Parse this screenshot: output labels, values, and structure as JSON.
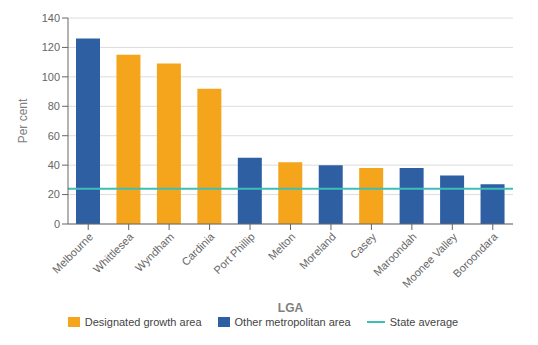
{
  "chart_data": {
    "type": "bar",
    "categories": [
      "Melbourne",
      "Whittlesea",
      "Wyndham",
      "Cardinia",
      "Port Phillip",
      "Melton",
      "Moreland",
      "Casey",
      "Maroondah",
      "Moonee Valley",
      "Boroondara"
    ],
    "values": [
      126,
      115,
      109,
      92,
      45,
      42,
      40,
      38,
      38,
      33,
      27
    ],
    "colors": [
      "#2e5fa3",
      "#f5a51b",
      "#f5a51b",
      "#f5a51b",
      "#2e5fa3",
      "#f5a51b",
      "#2e5fa3",
      "#f5a51b",
      "#2e5fa3",
      "#2e5fa3",
      "#2e5fa3"
    ],
    "groups": [
      {
        "name": "Designated growth area",
        "color": "#f5a51b"
      },
      {
        "name": "Other metropolitan area",
        "color": "#2e5fa3"
      }
    ],
    "reference_line": {
      "name": "State average",
      "value": 24,
      "color": "#3dbfb8"
    },
    "xlabel": "LGA",
    "ylabel": "Per cent",
    "ylim": [
      0,
      140
    ],
    "yticks": [
      0,
      20,
      40,
      60,
      80,
      100,
      120,
      140
    ],
    "grid": true,
    "legend": "bottom"
  }
}
